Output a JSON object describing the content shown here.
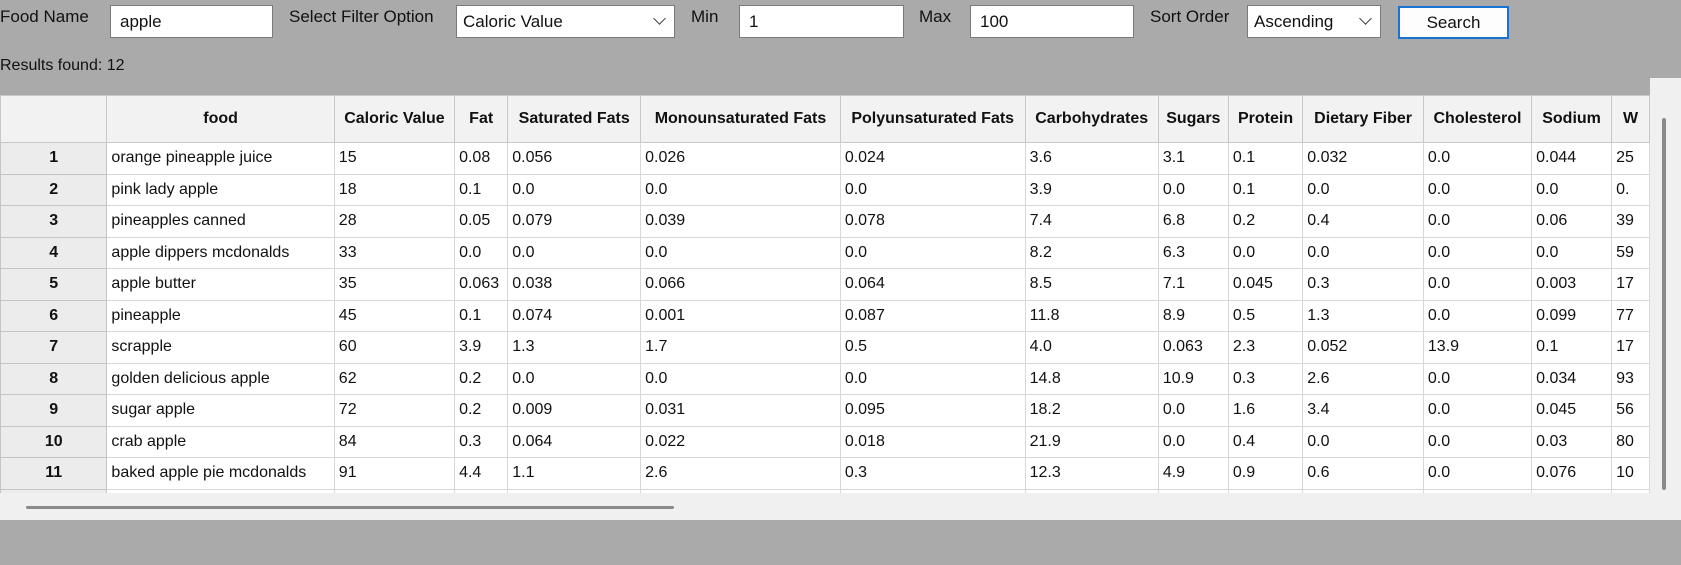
{
  "toolbar": {
    "food_name_label": "Food Name",
    "food_name_value": "apple",
    "filter_label": "Select Filter Option",
    "filter_value": "Caloric Value",
    "min_label": "Min",
    "min_value": "1",
    "max_label": "Max",
    "max_value": "100",
    "sort_label": "Sort Order",
    "sort_value": "Ascending",
    "search_label": "Search"
  },
  "results_text": "Results found: 12",
  "table": {
    "columns": [
      "food",
      "Caloric Value",
      "Fat",
      "Saturated Fats",
      "Monounsaturated Fats",
      "Polyunsaturated Fats",
      "Carbohydrates",
      "Sugars",
      "Protein",
      "Dietary Fiber",
      "Cholesterol",
      "Sodium",
      "W"
    ],
    "rows": [
      {
        "index": "1",
        "cells": [
          "orange pineapple juice",
          "15",
          "0.08",
          "0.056",
          "0.026",
          "0.024",
          "3.6",
          "3.1",
          "0.1",
          "0.032",
          "0.0",
          "0.044",
          "25"
        ]
      },
      {
        "index": "2",
        "cells": [
          "pink lady apple",
          "18",
          "0.1",
          "0.0",
          "0.0",
          "0.0",
          "3.9",
          "0.0",
          "0.1",
          "0.0",
          "0.0",
          "0.0",
          "0."
        ]
      },
      {
        "index": "3",
        "cells": [
          "pineapples canned",
          "28",
          "0.05",
          "0.079",
          "0.039",
          "0.078",
          "7.4",
          "6.8",
          "0.2",
          "0.4",
          "0.0",
          "0.06",
          "39"
        ]
      },
      {
        "index": "4",
        "cells": [
          "apple dippers mcdonalds",
          "33",
          "0.0",
          "0.0",
          "0.0",
          "0.0",
          "8.2",
          "6.3",
          "0.0",
          "0.0",
          "0.0",
          "0.0",
          "59"
        ]
      },
      {
        "index": "5",
        "cells": [
          "apple butter",
          "35",
          "0.063",
          "0.038",
          "0.066",
          "0.064",
          "8.5",
          "7.1",
          "0.045",
          "0.3",
          "0.0",
          "0.003",
          "17"
        ]
      },
      {
        "index": "6",
        "cells": [
          "pineapple",
          "45",
          "0.1",
          "0.074",
          "0.001",
          "0.087",
          "11.8",
          "8.9",
          "0.5",
          "1.3",
          "0.0",
          "0.099",
          "77"
        ]
      },
      {
        "index": "7",
        "cells": [
          "scrapple",
          "60",
          "3.9",
          "1.3",
          "1.7",
          "0.5",
          "4.0",
          "0.063",
          "2.3",
          "0.052",
          "13.9",
          "0.1",
          "17"
        ]
      },
      {
        "index": "8",
        "cells": [
          "golden delicious apple",
          "62",
          "0.2",
          "0.0",
          "0.0",
          "0.0",
          "14.8",
          "10.9",
          "0.3",
          "2.6",
          "0.0",
          "0.034",
          "93"
        ]
      },
      {
        "index": "9",
        "cells": [
          "sugar apple",
          "72",
          "0.2",
          "0.009",
          "0.031",
          "0.095",
          "18.2",
          "0.0",
          "1.6",
          "3.4",
          "0.0",
          "0.045",
          "56"
        ]
      },
      {
        "index": "10",
        "cells": [
          "crab apple",
          "84",
          "0.3",
          "0.064",
          "0.022",
          "0.018",
          "21.9",
          "0.0",
          "0.4",
          "0.0",
          "0.0",
          "0.03",
          "80"
        ]
      },
      {
        "index": "11",
        "cells": [
          "baked apple pie mcdonalds",
          "91",
          "4.4",
          "1.1",
          "2.6",
          "0.3",
          "12.3",
          "4.9",
          "0.9",
          "0.6",
          "0.0",
          "0.076",
          "10"
        ]
      },
      {
        "index": "",
        "cells": [
          "",
          "",
          "",
          "",
          "",
          "",
          "",
          "",
          "",
          "",
          "",
          "",
          ""
        ]
      }
    ]
  }
}
